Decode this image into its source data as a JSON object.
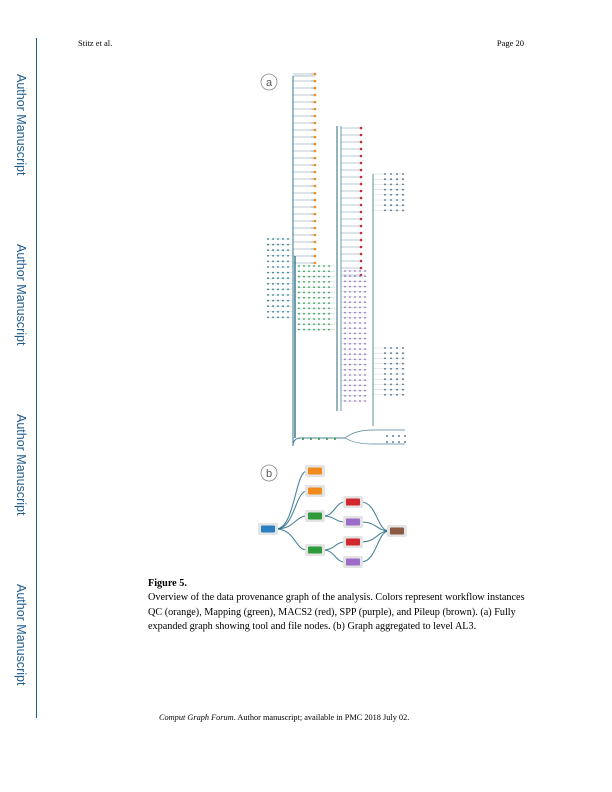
{
  "watermark": {
    "text": "Author Manuscript",
    "color": "#1f5a8a"
  },
  "header": {
    "author": "Stitz et al.",
    "page": "Page 20"
  },
  "figure": {
    "panel_a_label": "a",
    "panel_b_label": "b",
    "colors": {
      "qc": "#f08a1c",
      "mapping": "#2e9a3a",
      "macs2": "#d0282c",
      "spp": "#9b6cc8",
      "pileup": "#8a5a44",
      "input": "#2a7fc1",
      "edge": "#2c6f86"
    }
  },
  "caption": {
    "title": "Figure 5.",
    "text": "Overview of the data provenance graph of the analysis. Colors represent workflow instances QC (orange), Mapping (green), MACS2 (red), SPP (purple), and Pileup (brown). (a) Fully expanded graph showing tool and file nodes. (b) Graph aggregated to level AL3."
  },
  "footer": {
    "journal": "Comput Graph Forum",
    "rest": ". Author manuscript; available in PMC 2018 July 02."
  }
}
